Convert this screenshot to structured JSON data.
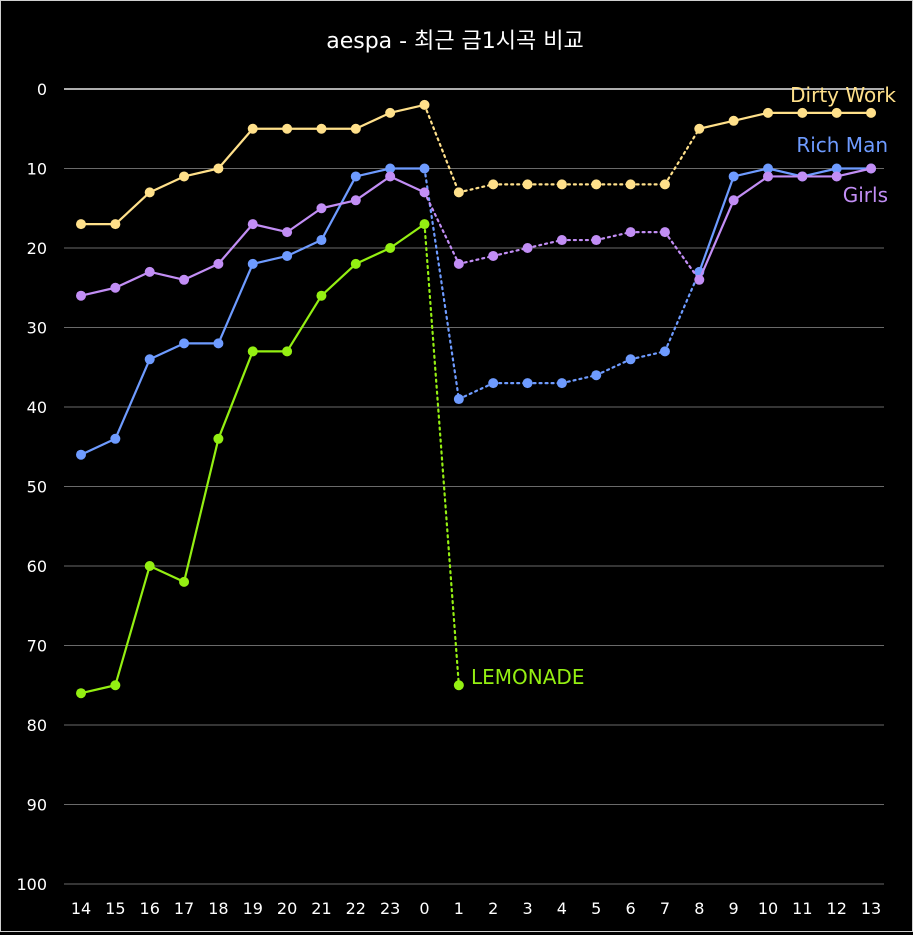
{
  "chart_data": {
    "type": "line",
    "title": "aespa - 최근 금1시곡 비교",
    "xlabel": "",
    "ylabel": "",
    "ylim": [
      0,
      100
    ],
    "y_reversed": true,
    "yticks": [
      0,
      10,
      20,
      30,
      40,
      50,
      60,
      70,
      80,
      90,
      100
    ],
    "categories": [
      "14",
      "15",
      "16",
      "17",
      "18",
      "19",
      "20",
      "21",
      "22",
      "23",
      "0",
      "1",
      "2",
      "3",
      "4",
      "5",
      "6",
      "7",
      "8",
      "9",
      "10",
      "11",
      "12",
      "13"
    ],
    "grid": true,
    "legend": "inline labels at line ends",
    "solid_ranges": [
      [
        0,
        10
      ],
      [
        18,
        23
      ]
    ],
    "series": [
      {
        "name": "Dirty Work",
        "color": "#ffe08a",
        "values": [
          17,
          17,
          13,
          11,
          10,
          5,
          5,
          5,
          5,
          3,
          2,
          13,
          12,
          12,
          12,
          12,
          12,
          12,
          5,
          4,
          3,
          3,
          3,
          3
        ]
      },
      {
        "name": "Rich Man",
        "color": "#6e9bff",
        "values": [
          46,
          44,
          34,
          32,
          32,
          22,
          21,
          19,
          11,
          10,
          10,
          39,
          37,
          37,
          37,
          36,
          34,
          33,
          23,
          11,
          10,
          11,
          10,
          10
        ]
      },
      {
        "name": "Girls",
        "color": "#c28ef5",
        "values": [
          26,
          25,
          23,
          24,
          22,
          17,
          18,
          15,
          14,
          11,
          13,
          22,
          21,
          20,
          19,
          19,
          18,
          18,
          24,
          14,
          11,
          11,
          11,
          10
        ]
      },
      {
        "name": "LEMONADE",
        "color": "#94ef12",
        "values": [
          76,
          75,
          60,
          62,
          44,
          33,
          33,
          26,
          22,
          20,
          17,
          75,
          null,
          null,
          null,
          null,
          null,
          null,
          null,
          null,
          null,
          null,
          null,
          null
        ]
      }
    ]
  }
}
